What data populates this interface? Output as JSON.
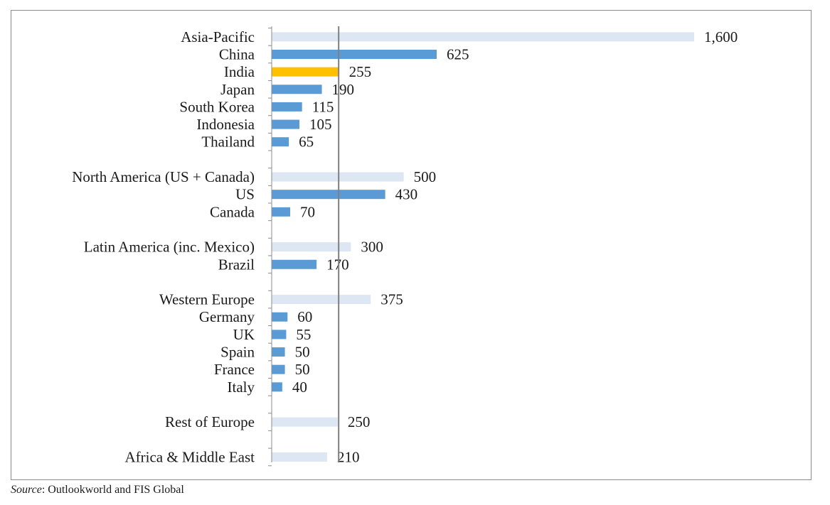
{
  "chart_data": {
    "type": "bar",
    "orientation": "horizontal",
    "categories": [
      "Asia-Pacific",
      "China",
      "India",
      "Japan",
      "South Korea",
      "Indonesia",
      "Thailand",
      "North America (US + Canada)",
      "US",
      "Canada",
      "Latin America (inc. Mexico)",
      "Brazil",
      "Western Europe",
      "Germany",
      "UK",
      "Spain",
      "France",
      "Italy",
      "Rest of Europe",
      "Africa & Middle East"
    ],
    "values": [
      1600,
      625,
      255,
      190,
      115,
      105,
      65,
      500,
      430,
      70,
      300,
      170,
      375,
      60,
      55,
      50,
      50,
      40,
      250,
      210
    ],
    "value_labels": [
      "1,600",
      "625",
      "255",
      "190",
      "115",
      "105",
      "65",
      "500",
      "430",
      "70",
      "300",
      "170",
      "375",
      "60",
      "55",
      "50",
      "50",
      "40",
      "250",
      "210"
    ],
    "kinds": [
      "region",
      "country",
      "highlight",
      "country",
      "country",
      "country",
      "country",
      "region",
      "country",
      "country",
      "region",
      "country",
      "region",
      "country",
      "country",
      "country",
      "country",
      "country",
      "region",
      "region"
    ],
    "group_breaks_after": [
      6,
      9,
      11,
      17,
      18
    ],
    "reference_line_value": 255,
    "xlim": [
      0,
      1600
    ],
    "colors": {
      "region": "#dce7f3",
      "country": "#5b9bd5",
      "highlight": "#ffc000",
      "reference_line": "#7f7f7f",
      "axis": "#8c8c8c"
    },
    "title": "",
    "xlabel": "",
    "ylabel": ""
  },
  "source": {
    "label": "Source",
    "text": ": Outlookworld and FIS Global"
  }
}
